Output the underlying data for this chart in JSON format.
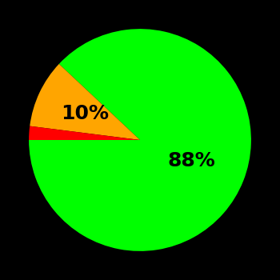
{
  "slices": [
    88,
    10,
    2
  ],
  "colors": [
    "#00ff00",
    "#ffa500",
    "#ff0000"
  ],
  "background_color": "#000000",
  "text_color": "#000000",
  "startangle": 180,
  "counterclock": true,
  "fontsize": 18,
  "fontweight": "bold",
  "green_label": "88%",
  "yellow_label": "10%",
  "green_label_r": 0.5,
  "yellow_label_r": 0.55
}
